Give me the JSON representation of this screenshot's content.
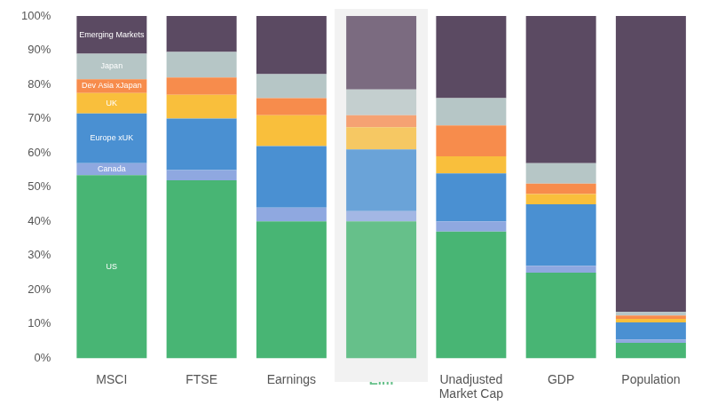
{
  "chart_data": {
    "type": "bar",
    "stacked": true,
    "grid": false,
    "categories": [
      "MSCI",
      "FTSE",
      "Earnings",
      "Elm",
      "Unadjusted Market Cap",
      "GDP",
      "Population"
    ],
    "series": [
      {
        "name": "US",
        "color": "#48b574",
        "colors": [
          "#48b574",
          "#48b574",
          "#48b574",
          "#66c08a",
          "#48b574",
          "#48b574",
          "#48b574"
        ],
        "values": [
          53.5,
          52,
          40,
          40,
          37,
          25,
          4.5
        ]
      },
      {
        "name": "Canada",
        "color": "#8fa8e0",
        "colors": [
          "#8fa8e0",
          "#8fa8e0",
          "#8fa8e0",
          "#a3b7e4",
          "#8fa8e0",
          "#8fa8e0",
          "#8fa8e0"
        ],
        "values": [
          3.5,
          3,
          4,
          3,
          3,
          2,
          1
        ]
      },
      {
        "name": "Europe xUK",
        "color": "#4a90d2",
        "colors": [
          "#4a90d2",
          "#4a90d2",
          "#4a90d2",
          "#6aa3d8",
          "#4a90d2",
          "#4a90d2",
          "#4a90d2"
        ],
        "values": [
          14.5,
          15,
          18,
          18,
          14,
          18,
          5
        ]
      },
      {
        "name": "UK",
        "color": "#f9bf3c",
        "colors": [
          "#f9bf3c",
          "#f9bf3c",
          "#f9bf3c",
          "#f6c863",
          "#f9bf3c",
          "#f9bf3c",
          "#f9bf3c"
        ],
        "values": [
          6,
          7,
          9,
          6.5,
          5,
          3,
          1
        ]
      },
      {
        "name": "Dev Asia xJapan",
        "color": "#f78c4c",
        "colors": [
          "#f78c4c",
          "#f78c4c",
          "#f78c4c",
          "#f5a273",
          "#f78c4c",
          "#f78c4c",
          "#f78c4c"
        ],
        "values": [
          4,
          5,
          5,
          3.5,
          9,
          3,
          1
        ]
      },
      {
        "name": "Japan",
        "color": "#b6c6c6",
        "colors": [
          "#b6c6c6",
          "#b6c6c6",
          "#b6c6c6",
          "#c4cfcf",
          "#b6c6c6",
          "#b6c6c6",
          "#b6c6c6"
        ],
        "values": [
          7.5,
          7.5,
          7,
          7.5,
          8,
          6,
          1
        ]
      },
      {
        "name": "Emerging Markets",
        "color": "#5b4a62",
        "colors": [
          "#5b4a62",
          "#5b4a62",
          "#5b4a62",
          "#7b6b80",
          "#5b4a62",
          "#5b4a62",
          "#5b4a62"
        ],
        "values": [
          11,
          10.5,
          17,
          21.5,
          24,
          43,
          86.5
        ]
      }
    ],
    "ylim": [
      0,
      100
    ],
    "yticks": [
      {
        "value": 0,
        "label": "0%"
      },
      {
        "value": 10,
        "label": "10%"
      },
      {
        "value": 20,
        "label": "20%"
      },
      {
        "value": 30,
        "label": "30%"
      },
      {
        "value": 40,
        "label": "40%"
      },
      {
        "value": 50,
        "label": "50%"
      },
      {
        "value": 60,
        "label": "60%"
      },
      {
        "value": 70,
        "label": "70%"
      },
      {
        "value": 80,
        "label": "80%"
      },
      {
        "value": 90,
        "label": "90%"
      },
      {
        "value": 100,
        "label": "100%"
      }
    ]
  }
}
